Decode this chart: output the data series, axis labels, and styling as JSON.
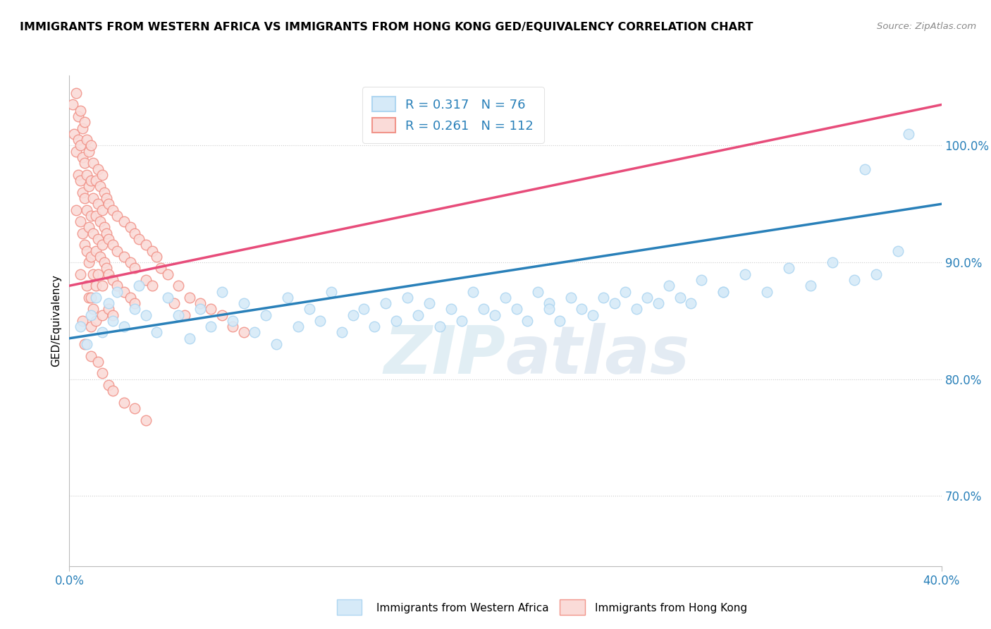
{
  "title": "IMMIGRANTS FROM WESTERN AFRICA VS IMMIGRANTS FROM HONG KONG GED/EQUIVALENCY CORRELATION CHART",
  "source": "Source: ZipAtlas.com",
  "ylabel_label": "GED/Equivalency",
  "legend_label_blue": "Immigrants from Western Africa",
  "legend_label_pink": "Immigrants from Hong Kong",
  "legend_r_blue": "R = 0.317",
  "legend_n_blue": "N = 76",
  "legend_r_pink": "R = 0.261",
  "legend_n_pink": "N = 112",
  "x_min": 0.0,
  "x_max": 40.0,
  "y_min": 64.0,
  "y_max": 106.0,
  "blue_scatter": [
    [
      0.5,
      84.5
    ],
    [
      0.8,
      83.0
    ],
    [
      1.0,
      85.5
    ],
    [
      1.2,
      87.0
    ],
    [
      1.5,
      84.0
    ],
    [
      1.8,
      86.5
    ],
    [
      2.0,
      85.0
    ],
    [
      2.2,
      87.5
    ],
    [
      2.5,
      84.5
    ],
    [
      3.0,
      86.0
    ],
    [
      3.2,
      88.0
    ],
    [
      3.5,
      85.5
    ],
    [
      4.0,
      84.0
    ],
    [
      4.5,
      87.0
    ],
    [
      5.0,
      85.5
    ],
    [
      5.5,
      83.5
    ],
    [
      6.0,
      86.0
    ],
    [
      6.5,
      84.5
    ],
    [
      7.0,
      87.5
    ],
    [
      7.5,
      85.0
    ],
    [
      8.0,
      86.5
    ],
    [
      8.5,
      84.0
    ],
    [
      9.0,
      85.5
    ],
    [
      9.5,
      83.0
    ],
    [
      10.0,
      87.0
    ],
    [
      10.5,
      84.5
    ],
    [
      11.0,
      86.0
    ],
    [
      11.5,
      85.0
    ],
    [
      12.0,
      87.5
    ],
    [
      12.5,
      84.0
    ],
    [
      13.0,
      85.5
    ],
    [
      13.5,
      86.0
    ],
    [
      14.0,
      84.5
    ],
    [
      14.5,
      86.5
    ],
    [
      15.0,
      85.0
    ],
    [
      15.5,
      87.0
    ],
    [
      16.0,
      85.5
    ],
    [
      16.5,
      86.5
    ],
    [
      17.0,
      84.5
    ],
    [
      17.5,
      86.0
    ],
    [
      18.0,
      85.0
    ],
    [
      18.5,
      87.5
    ],
    [
      19.0,
      86.0
    ],
    [
      19.5,
      85.5
    ],
    [
      20.0,
      87.0
    ],
    [
      20.5,
      86.0
    ],
    [
      21.0,
      85.0
    ],
    [
      21.5,
      87.5
    ],
    [
      22.0,
      86.5
    ],
    [
      22.5,
      85.0
    ],
    [
      23.0,
      87.0
    ],
    [
      23.5,
      86.0
    ],
    [
      24.0,
      85.5
    ],
    [
      24.5,
      87.0
    ],
    [
      25.0,
      86.5
    ],
    [
      25.5,
      87.5
    ],
    [
      26.0,
      86.0
    ],
    [
      26.5,
      87.0
    ],
    [
      27.0,
      86.5
    ],
    [
      27.5,
      88.0
    ],
    [
      28.0,
      87.0
    ],
    [
      28.5,
      86.5
    ],
    [
      29.0,
      88.5
    ],
    [
      30.0,
      87.5
    ],
    [
      31.0,
      89.0
    ],
    [
      32.0,
      87.5
    ],
    [
      33.0,
      89.5
    ],
    [
      34.0,
      88.0
    ],
    [
      35.0,
      90.0
    ],
    [
      36.0,
      88.5
    ],
    [
      37.0,
      89.0
    ],
    [
      38.0,
      91.0
    ],
    [
      38.5,
      101.0
    ],
    [
      36.5,
      98.0
    ],
    [
      30.0,
      87.5
    ],
    [
      22.0,
      86.0
    ]
  ],
  "pink_scatter": [
    [
      0.15,
      103.5
    ],
    [
      0.2,
      101.0
    ],
    [
      0.3,
      104.5
    ],
    [
      0.3,
      99.5
    ],
    [
      0.4,
      102.5
    ],
    [
      0.4,
      100.5
    ],
    [
      0.4,
      97.5
    ],
    [
      0.5,
      103.0
    ],
    [
      0.5,
      100.0
    ],
    [
      0.5,
      97.0
    ],
    [
      0.5,
      93.5
    ],
    [
      0.6,
      101.5
    ],
    [
      0.6,
      99.0
    ],
    [
      0.6,
      96.0
    ],
    [
      0.6,
      92.5
    ],
    [
      0.7,
      102.0
    ],
    [
      0.7,
      98.5
    ],
    [
      0.7,
      95.5
    ],
    [
      0.7,
      91.5
    ],
    [
      0.8,
      100.5
    ],
    [
      0.8,
      97.5
    ],
    [
      0.8,
      94.5
    ],
    [
      0.8,
      91.0
    ],
    [
      0.8,
      88.0
    ],
    [
      0.9,
      99.5
    ],
    [
      0.9,
      96.5
    ],
    [
      0.9,
      93.0
    ],
    [
      0.9,
      90.0
    ],
    [
      0.9,
      87.0
    ],
    [
      1.0,
      100.0
    ],
    [
      1.0,
      97.0
    ],
    [
      1.0,
      94.0
    ],
    [
      1.0,
      90.5
    ],
    [
      1.0,
      87.0
    ],
    [
      1.0,
      84.5
    ],
    [
      1.1,
      98.5
    ],
    [
      1.1,
      95.5
    ],
    [
      1.1,
      92.5
    ],
    [
      1.1,
      89.0
    ],
    [
      1.1,
      86.0
    ],
    [
      1.2,
      97.0
    ],
    [
      1.2,
      94.0
    ],
    [
      1.2,
      91.0
    ],
    [
      1.2,
      88.0
    ],
    [
      1.2,
      85.0
    ],
    [
      1.3,
      98.0
    ],
    [
      1.3,
      95.0
    ],
    [
      1.3,
      92.0
    ],
    [
      1.3,
      89.0
    ],
    [
      1.4,
      96.5
    ],
    [
      1.4,
      93.5
    ],
    [
      1.4,
      90.5
    ],
    [
      1.5,
      97.5
    ],
    [
      1.5,
      94.5
    ],
    [
      1.5,
      91.5
    ],
    [
      1.5,
      88.0
    ],
    [
      1.5,
      85.5
    ],
    [
      1.6,
      96.0
    ],
    [
      1.6,
      93.0
    ],
    [
      1.6,
      90.0
    ],
    [
      1.7,
      95.5
    ],
    [
      1.7,
      92.5
    ],
    [
      1.7,
      89.5
    ],
    [
      1.8,
      95.0
    ],
    [
      1.8,
      92.0
    ],
    [
      1.8,
      89.0
    ],
    [
      1.8,
      86.0
    ],
    [
      2.0,
      94.5
    ],
    [
      2.0,
      91.5
    ],
    [
      2.0,
      88.5
    ],
    [
      2.0,
      85.5
    ],
    [
      2.2,
      94.0
    ],
    [
      2.2,
      91.0
    ],
    [
      2.2,
      88.0
    ],
    [
      2.5,
      93.5
    ],
    [
      2.5,
      90.5
    ],
    [
      2.5,
      87.5
    ],
    [
      2.8,
      93.0
    ],
    [
      2.8,
      90.0
    ],
    [
      2.8,
      87.0
    ],
    [
      3.0,
      92.5
    ],
    [
      3.0,
      89.5
    ],
    [
      3.0,
      86.5
    ],
    [
      3.2,
      92.0
    ],
    [
      3.5,
      91.5
    ],
    [
      3.5,
      88.5
    ],
    [
      3.8,
      91.0
    ],
    [
      3.8,
      88.0
    ],
    [
      4.0,
      90.5
    ],
    [
      4.2,
      89.5
    ],
    [
      4.5,
      89.0
    ],
    [
      4.8,
      86.5
    ],
    [
      5.0,
      88.0
    ],
    [
      5.3,
      85.5
    ],
    [
      5.5,
      87.0
    ],
    [
      6.0,
      86.5
    ],
    [
      6.5,
      86.0
    ],
    [
      7.0,
      85.5
    ],
    [
      7.5,
      84.5
    ],
    [
      8.0,
      84.0
    ],
    [
      0.3,
      94.5
    ],
    [
      0.5,
      89.0
    ],
    [
      0.6,
      85.0
    ],
    [
      0.7,
      83.0
    ],
    [
      1.0,
      82.0
    ],
    [
      1.3,
      81.5
    ],
    [
      1.5,
      80.5
    ],
    [
      1.8,
      79.5
    ],
    [
      2.0,
      79.0
    ],
    [
      2.5,
      78.0
    ],
    [
      3.0,
      77.5
    ],
    [
      3.5,
      76.5
    ]
  ],
  "blue_line_x": [
    0.0,
    40.0
  ],
  "blue_line_y": [
    83.5,
    95.0
  ],
  "pink_line_x": [
    0.0,
    40.0
  ],
  "pink_line_y": [
    88.0,
    103.5
  ],
  "blue_color": "#AED6F1",
  "pink_color": "#F1948A",
  "blue_fill_color": "#D6EAF8",
  "pink_fill_color": "#FADBD8",
  "blue_line_color": "#2980B9",
  "pink_line_color": "#E74C7A",
  "title_fontsize": 11.5,
  "watermark": "ZIPatlas",
  "background_color": "#FFFFFF",
  "x_tick_positions": [
    0.0,
    40.0
  ],
  "x_tick_labels": [
    "0.0%",
    "40.0%"
  ],
  "y_ticks": [
    70,
    80,
    90,
    100
  ],
  "grid_color": "#CCCCCC"
}
